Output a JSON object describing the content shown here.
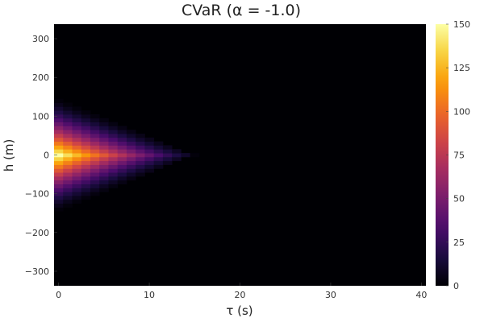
{
  "chart_data": {
    "type": "heatmap",
    "title": "CVaR (α = -1.0)",
    "xlabel": "τ (s)",
    "ylabel": "h (m)",
    "xlim": [
      -0.5,
      40.5
    ],
    "ylim": [
      -337.5,
      337.5
    ],
    "x_ticks": [
      0,
      10,
      20,
      30,
      40
    ],
    "x_tick_labels": [
      "0",
      "10",
      "20",
      "30",
      "40"
    ],
    "y_ticks": [
      -300,
      -200,
      -100,
      0,
      100,
      200,
      300
    ],
    "y_tick_labels": [
      "−300",
      "−200",
      "−100",
      "0",
      "100",
      "200",
      "300"
    ],
    "grid": false,
    "colormap": "inferno",
    "colorbar": {
      "range": [
        0,
        150
      ],
      "ticks": [
        0,
        25,
        50,
        75,
        100,
        125,
        150
      ],
      "tick_labels": [
        "0",
        "25",
        "50",
        "75",
        "100",
        "125",
        "150"
      ]
    },
    "cell_h_step": 10,
    "cell_tau_step": 1,
    "peak_value": 150,
    "nonzero_region": {
      "tau_max": 15,
      "h_half_width_at_tau0": 140,
      "description_shape": "triangular wedge decaying from τ=0 toward τ≈15 s"
    },
    "colors": {
      "inferno": [
        "#000004",
        "#1b0c41",
        "#4a0c6b",
        "#781c6d",
        "#a52c60",
        "#cf4446",
        "#ed6925",
        "#fb9b06",
        "#f7d13d",
        "#fcffa4"
      ]
    }
  }
}
